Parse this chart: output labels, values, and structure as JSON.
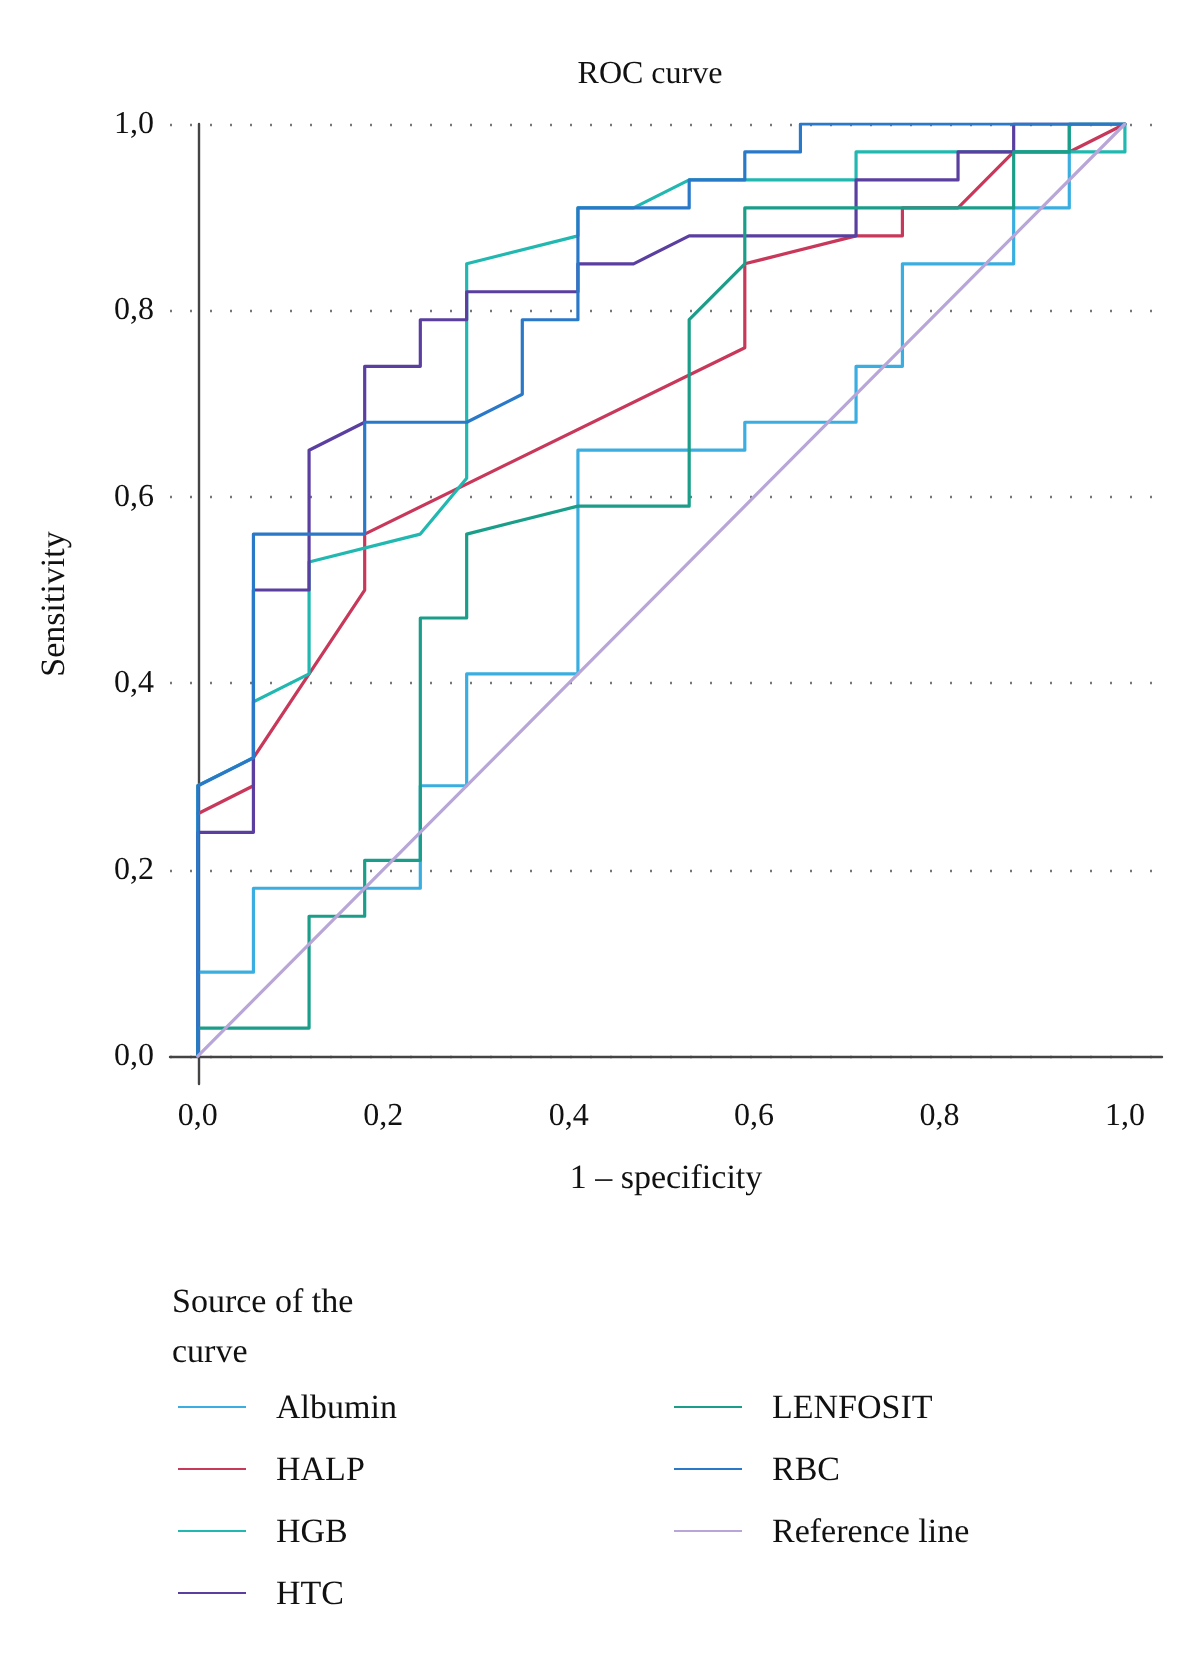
{
  "chart_data": {
    "type": "line",
    "title": "ROC curve",
    "xlabel": "1 – specificity",
    "ylabel": "Sensitivity",
    "legend_title": "Source of the curve",
    "legend": "bottom",
    "grid": "y",
    "marker": "none",
    "line_style": "solid",
    "xlim": [
      -0.03,
      1.04
    ],
    "ylim": [
      -0.03,
      1.0
    ],
    "xticks": [
      {
        "value": 0,
        "label": "0,0"
      },
      {
        "value": 0.2,
        "label": "0,2"
      },
      {
        "value": 0.4,
        "label": "0,4"
      },
      {
        "value": 0.6,
        "label": "0,6"
      },
      {
        "value": 0.8,
        "label": "0,8"
      },
      {
        "value": 1,
        "label": "1,0"
      }
    ],
    "yticks": [
      {
        "value": 0,
        "label": "0,0"
      },
      {
        "value": 0.2,
        "label": "0,2"
      },
      {
        "value": 0.4,
        "label": "0,4"
      },
      {
        "value": 0.6,
        "label": "0,6"
      },
      {
        "value": 0.8,
        "label": "0,8"
      },
      {
        "value": 1,
        "label": "1,0"
      }
    ],
    "series": [
      {
        "name": "Albumin",
        "color": "#3aaee0",
        "x": [
          0,
          0,
          0.06,
          0.06,
          0.24,
          0.24,
          0.29,
          0.29,
          0.41,
          0.41,
          0.59,
          0.59,
          0.71,
          0.71,
          0.76,
          0.76,
          0.88,
          0.88,
          0.94,
          0.94,
          1
        ],
        "values": [
          0,
          0.09,
          0.09,
          0.18,
          0.18,
          0.29,
          0.29,
          0.41,
          0.41,
          0.65,
          0.65,
          0.68,
          0.68,
          0.74,
          0.74,
          0.85,
          0.85,
          0.91,
          0.91,
          1,
          1
        ]
      },
      {
        "name": "HALP",
        "color": "#c8385a",
        "x": [
          0,
          0.06,
          0.06,
          0.18,
          0.18,
          0.59,
          0.59,
          0.71,
          0.76,
          0.76,
          0.82,
          0.88,
          0.94,
          1
        ],
        "values": [
          0.26,
          0.29,
          0.32,
          0.5,
          0.56,
          0.76,
          0.85,
          0.88,
          0.88,
          0.91,
          0.91,
          0.97,
          0.97,
          1
        ]
      },
      {
        "name": "HGB",
        "color": "#20b8b0",
        "x": [
          0,
          0,
          0.06,
          0.06,
          0.12,
          0.12,
          0.24,
          0.29,
          0.29,
          0.41,
          0.41,
          0.47,
          0.53,
          0.71,
          0.71,
          1,
          1
        ],
        "values": [
          0,
          0.29,
          0.32,
          0.38,
          0.41,
          0.53,
          0.56,
          0.62,
          0.85,
          0.88,
          0.91,
          0.91,
          0.94,
          0.94,
          0.97,
          0.97,
          1
        ]
      },
      {
        "name": "HTC",
        "color": "#5a3fa0",
        "x": [
          0,
          0,
          0.06,
          0.06,
          0.12,
          0.12,
          0.18,
          0.18,
          0.24,
          0.24,
          0.29,
          0.29,
          0.41,
          0.41,
          0.47,
          0.53,
          0.71,
          0.71,
          0.82,
          0.82,
          0.88,
          0.88,
          1
        ],
        "values": [
          0,
          0.24,
          0.24,
          0.5,
          0.5,
          0.65,
          0.68,
          0.74,
          0.74,
          0.79,
          0.79,
          0.82,
          0.82,
          0.85,
          0.85,
          0.88,
          0.88,
          0.94,
          0.94,
          0.97,
          0.97,
          1,
          1
        ]
      },
      {
        "name": "LENFOSIT",
        "color": "#1a9e8a",
        "x": [
          0,
          0,
          0.12,
          0.12,
          0.18,
          0.18,
          0.24,
          0.24,
          0.29,
          0.29,
          0.41,
          0.53,
          0.53,
          0.59,
          0.59,
          0.88,
          0.88,
          0.94,
          0.94,
          1
        ],
        "values": [
          0,
          0.03,
          0.03,
          0.15,
          0.15,
          0.21,
          0.21,
          0.47,
          0.47,
          0.56,
          0.59,
          0.59,
          0.79,
          0.85,
          0.91,
          0.91,
          0.97,
          0.97,
          1,
          1
        ]
      },
      {
        "name": "RBC",
        "color": "#2a78c8",
        "x": [
          0,
          0,
          0.06,
          0.06,
          0.18,
          0.18,
          0.29,
          0.35,
          0.35,
          0.41,
          0.41,
          0.53,
          0.53,
          0.59,
          0.59,
          0.65,
          0.65,
          1
        ],
        "values": [
          0,
          0.29,
          0.32,
          0.56,
          0.56,
          0.68,
          0.68,
          0.71,
          0.79,
          0.79,
          0.91,
          0.91,
          0.94,
          0.94,
          0.97,
          0.97,
          1,
          1
        ]
      },
      {
        "name": "Reference line",
        "color": "#b8a6d8",
        "x": [
          0,
          1
        ],
        "values": [
          0,
          1
        ]
      }
    ]
  }
}
